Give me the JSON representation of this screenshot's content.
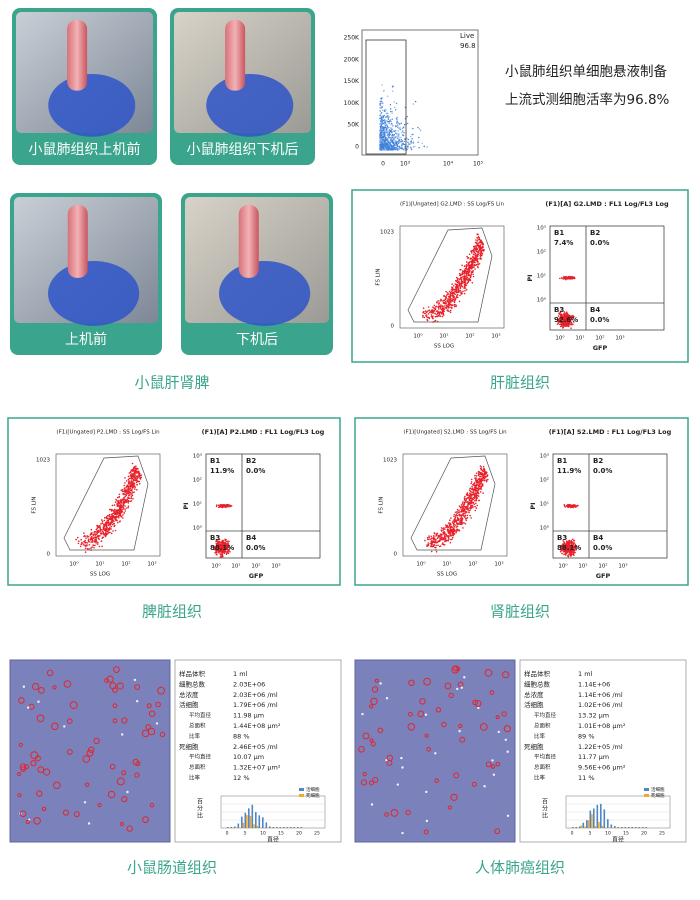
{
  "lung": {
    "photo_captions": [
      "小鼠肺组织上机前",
      "小鼠肺组织下机后"
    ],
    "flow": {
      "gate": "Live",
      "gate_value": "96.8",
      "yticks": [
        "250K",
        "200K",
        "150K",
        "100K",
        "50K",
        "0"
      ],
      "xticks": [
        "0",
        "10³",
        "10⁴",
        "10⁵"
      ]
    },
    "caption_lines": [
      "小鼠肺组织单细胞悬液制备",
      "上流式测细胞活率为96.8%"
    ]
  },
  "organs": {
    "photo_captions": [
      "上机前",
      "下机后"
    ],
    "caption": "小鼠肝肾脾"
  },
  "panels": [
    {
      "scatter_title": "(F1)[Ungated] G2.LMD : SS Log/FS Lin",
      "quad_title": "(F1)[A] G2.LMD : FL1 Log/FL3 Log",
      "scatter_ylabel": "FS LIN",
      "scatter_yticks": [
        "1023",
        "0"
      ],
      "scatter_xticks": [
        "10⁰",
        "10¹",
        "10²",
        "10³"
      ],
      "scatter_xlabel": "SS LOG",
      "quad_ylabel": "PI",
      "quad_yticks": [
        "10³",
        "10²",
        "10¹",
        "10⁰"
      ],
      "quad_xticks": [
        "10⁰",
        "10¹",
        "10²",
        "10³"
      ],
      "quad_xlabel": "GFP",
      "quadrants": [
        {
          "name": "B1",
          "value": "7.4%"
        },
        {
          "name": "B2",
          "value": "0.0%"
        },
        {
          "name": "B3",
          "value": "92.6%"
        },
        {
          "name": "B4",
          "value": "0.0%"
        }
      ],
      "caption": "肝脏组织"
    },
    {
      "scatter_title": "(F1)[Ungated] P2.LMD : SS Log/FS Lin",
      "quad_title": "(F1)[A] P2.LMD : FL1 Log/FL3 Log",
      "scatter_ylabel": "FS LIN",
      "scatter_yticks": [
        "1023",
        "0"
      ],
      "scatter_xticks": [
        "10⁰",
        "10¹",
        "10²",
        "10³"
      ],
      "scatter_xlabel": "SS LOG",
      "quad_ylabel": "PI",
      "quad_yticks": [
        "10³",
        "10²",
        "10¹",
        "10⁰"
      ],
      "quad_xticks": [
        "10⁰",
        "10¹",
        "10²",
        "10³"
      ],
      "quad_xlabel": "GFP",
      "quadrants": [
        {
          "name": "B1",
          "value": "11.9%"
        },
        {
          "name": "B2",
          "value": "0.0%"
        },
        {
          "name": "B3",
          "value": "88.1%"
        },
        {
          "name": "B4",
          "value": "0.0%"
        }
      ],
      "caption": "脾脏组织"
    },
    {
      "scatter_title": "(F1)[Ungated] S2.LMD : SS Log/FS Lin",
      "quad_title": "(F1)[A] S2.LMD : FL1 Log/FL3 Log",
      "scatter_ylabel": "FS LIN",
      "scatter_yticks": [
        "1023",
        "0"
      ],
      "scatter_xticks": [
        "10⁰",
        "10¹",
        "10²",
        "10³"
      ],
      "scatter_xlabel": "SS LOG",
      "quad_ylabel": "PI",
      "quad_yticks": [
        "10³",
        "10²",
        "10¹",
        "10⁰"
      ],
      "quad_xticks": [
        "10⁰",
        "10¹",
        "10²",
        "10³"
      ],
      "quad_xlabel": "GFP",
      "quadrants": [
        {
          "name": "B1",
          "value": "11.9%"
        },
        {
          "name": "B2",
          "value": "0.0%"
        },
        {
          "name": "B3",
          "value": "88.1%"
        },
        {
          "name": "B4",
          "value": "0.0%"
        }
      ],
      "caption": "肾脏组织"
    }
  ],
  "counters": [
    {
      "rows": [
        [
          "样品体积",
          "1 ml"
        ],
        [
          "细胞总数",
          "2.03E+06"
        ],
        [
          "总浓度",
          "2.03E+06 /ml"
        ],
        [
          "活细胞",
          "1.79E+06 /ml"
        ],
        [
          "平均直径",
          "11.98 µm"
        ],
        [
          "总面积",
          "1.44E+08 µm²"
        ],
        [
          "比率",
          "88 %"
        ],
        [
          "死细胞",
          "2.46E+05 /ml"
        ],
        [
          "平均直径",
          "10.07 µm"
        ],
        [
          "总面积",
          "1.32E+07 µm²"
        ],
        [
          "比率",
          "12 %"
        ]
      ],
      "hist": {
        "ylabel": "百分比",
        "xlabel": "直径",
        "xticks": [
          "0",
          "5",
          "10",
          "15",
          "20",
          "25"
        ],
        "legend": [
          "活细胞",
          "死细胞"
        ]
      },
      "caption": "小鼠肠道组织"
    },
    {
      "rows": [
        [
          "样品体积",
          "1 ml"
        ],
        [
          "细胞总数",
          "1.14E+06"
        ],
        [
          "总浓度",
          "1.14E+06 /ml"
        ],
        [
          "活细胞",
          "1.02E+06 /ml"
        ],
        [
          "平均直径",
          "13.32 µm"
        ],
        [
          "总面积",
          "1.01E+08 µm²"
        ],
        [
          "比率",
          "89 %"
        ],
        [
          "死细胞",
          "1.22E+05 /ml"
        ],
        [
          "平均直径",
          "11.77 µm"
        ],
        [
          "总面积",
          "9.56E+06 µm²"
        ],
        [
          "比率",
          "11 %"
        ]
      ],
      "hist": {
        "ylabel": "百分比",
        "xlabel": "直径",
        "xticks": [
          "0",
          "5",
          "10",
          "15",
          "20",
          "25"
        ],
        "legend": [
          "活细胞",
          "死细胞"
        ]
      },
      "caption": "人体肺癌组织"
    }
  ]
}
